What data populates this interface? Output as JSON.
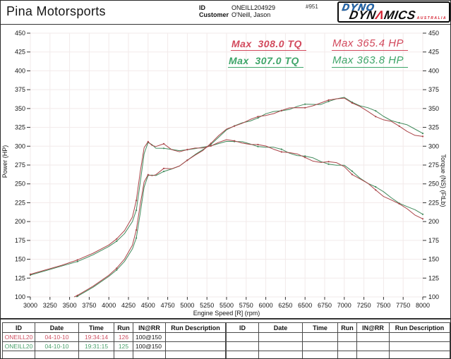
{
  "header": {
    "shop_name": "Pina Motorsports",
    "id_label": "ID",
    "id_value": "ONEILL204929",
    "customer_label": "Customer",
    "customer_value": "O'Neill, Jason",
    "print_number": "#951",
    "logo": {
      "line1": "DYNO",
      "line2_left": "DYN",
      "accent": "Λ",
      "line2_right": "MICS",
      "tagline": "AUSTRALIA"
    }
  },
  "annotations": {
    "red_tq": "Max  308.0 TQ",
    "red_hp": "Max 365.4 HP",
    "green_tq": "Max  307.0 TQ",
    "green_hp": "Max 363.8 HP"
  },
  "colors": {
    "red_text": "#d2495c",
    "green_text": "#3ea569",
    "red_curve": "#aa4448",
    "green_curve": "#418a5c",
    "grid": "#f2eaea",
    "axis": "#333333"
  },
  "chart_data": {
    "type": "line",
    "title": "",
    "xlabel": "Engine Speed [R] (rpm)",
    "ylabel_left": "Power (HP)",
    "ylabel_right": "Torque (NS) (FtLb)",
    "xlim": [
      3000,
      8000
    ],
    "ylim": [
      100,
      450
    ],
    "grid": true,
    "x_ticks": [
      3000,
      3250,
      3500,
      3750,
      4000,
      4250,
      4500,
      4750,
      5000,
      5250,
      5500,
      5750,
      6000,
      6250,
      6500,
      6750,
      7000,
      7250,
      7500,
      7750,
      8000
    ],
    "y_ticks": [
      100,
      125,
      150,
      175,
      200,
      225,
      250,
      275,
      300,
      325,
      350,
      375,
      400,
      425,
      450
    ],
    "x": [
      3000,
      3200,
      3400,
      3600,
      3800,
      4000,
      4100,
      4200,
      4300,
      4350,
      4400,
      4450,
      4500,
      4550,
      4600,
      4700,
      4800,
      4900,
      5000,
      5100,
      5200,
      5300,
      5400,
      5500,
      5600,
      5700,
      5800,
      5900,
      6000,
      6100,
      6200,
      6300,
      6400,
      6500,
      6600,
      6700,
      6800,
      6900,
      7000,
      7100,
      7200,
      7300,
      7400,
      7500,
      7600,
      7700,
      7800,
      7900,
      8000
    ],
    "series": [
      {
        "name": "Run 125 Torque (FtLb)",
        "color": "#418a5c",
        "max": 307.0,
        "values": [
          129,
          135,
          141,
          147,
          156,
          167,
          174,
          184,
          200,
          215,
          252,
          290,
          305,
          302,
          298,
          297,
          295,
          294,
          296,
          297,
          298,
          300,
          304,
          307,
          306,
          305,
          303,
          301,
          299,
          297,
          295,
          292,
          289,
          286,
          283,
          280,
          278,
          275,
          273,
          266,
          259,
          252,
          245,
          238,
          232,
          226,
          220,
          214,
          209
        ]
      },
      {
        "name": "Run 125 Power (HP)",
        "color": "#418a5c",
        "max": 363.8,
        "values": [
          73.7,
          82.3,
          91.3,
          100.8,
          112.9,
          127.2,
          135.8,
          147.1,
          163.7,
          178.1,
          211.1,
          245.7,
          261.3,
          261.6,
          261.0,
          265.8,
          269.6,
          274.3,
          281.8,
          288.4,
          295.0,
          302.7,
          312.6,
          321.5,
          326.2,
          331.0,
          334.6,
          338.1,
          341.6,
          344.9,
          348.2,
          350.2,
          352.2,
          354.0,
          355.6,
          357.1,
          359.9,
          361.3,
          363.8,
          359.6,
          355.0,
          350.2,
          345.2,
          339.9,
          335.7,
          331.3,
          326.7,
          321.9,
          318.4
        ]
      },
      {
        "name": "Run 126 Torque (FtLb)",
        "color": "#aa4448",
        "max": 308.0,
        "values": [
          130,
          136,
          142,
          149,
          158,
          169,
          177,
          188,
          206,
          228,
          266,
          298,
          306,
          301,
          299,
          303,
          296,
          293,
          295,
          297,
          298,
          301,
          305,
          308,
          307,
          305,
          303,
          301,
          299,
          297,
          294,
          291,
          288,
          285,
          282,
          279,
          278,
          277,
          274,
          264,
          256,
          249,
          242,
          235,
          229,
          222,
          216,
          210,
          205
        ]
      },
      {
        "name": "Run 126 Power (HP)",
        "color": "#aa4448",
        "max": 365.4,
        "values": [
          74.3,
          82.9,
          91.9,
          102.1,
          114.3,
          128.7,
          138.2,
          150.3,
          168.7,
          188.8,
          222.8,
          252.5,
          262.2,
          260.8,
          261.9,
          271.1,
          270.5,
          273.3,
          280.8,
          288.4,
          295.0,
          303.7,
          313.6,
          322.5,
          327.3,
          331.0,
          334.6,
          338.1,
          341.6,
          344.9,
          347.1,
          349.0,
          350.9,
          352.7,
          354.4,
          355.9,
          359.9,
          363.9,
          365.4,
          356.9,
          351.0,
          346.1,
          341.0,
          335.6,
          331.4,
          325.5,
          320.8,
          315.9,
          312.3
        ]
      }
    ]
  },
  "table": {
    "headers": [
      "ID",
      "Date",
      "Time",
      "Run",
      "IN@RR",
      "Run Description"
    ],
    "left_rows": [
      {
        "tone": "red",
        "cells": [
          "ONEILL20",
          "04-10-10",
          "19:34:14",
          "126",
          "100@150",
          ""
        ]
      },
      {
        "tone": "green",
        "cells": [
          "ONEILL20",
          "04-10-10",
          "19:31:15",
          "125",
          "100@150",
          ""
        ]
      },
      {
        "tone": "",
        "cells": [
          "",
          "",
          "",
          "",
          "",
          ""
        ]
      }
    ],
    "right_rows": [
      {
        "tone": "",
        "cells": [
          "",
          "",
          "",
          "",
          "",
          ""
        ]
      },
      {
        "tone": "",
        "cells": [
          "",
          "",
          "",
          "",
          "",
          ""
        ]
      },
      {
        "tone": "",
        "cells": [
          "",
          "",
          "",
          "",
          "",
          ""
        ]
      }
    ]
  }
}
